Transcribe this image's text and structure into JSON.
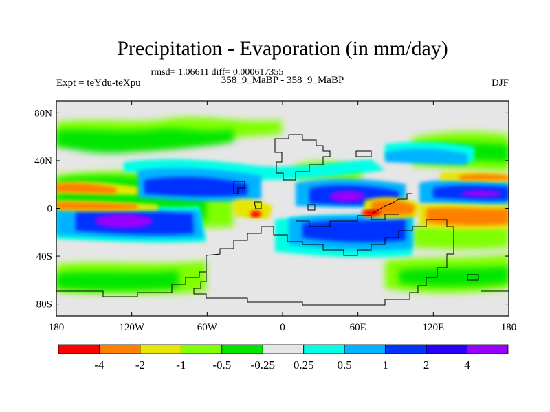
{
  "chart_data": {
    "type": "contour-map",
    "title": "Precipitation - Evaporation (in mm/day)",
    "stats_line": "rmsd= 1.06611 diff= 0.000617355",
    "left_label": "Expt = teYdu-teXpu",
    "center_label": "358_9_MaBP - 358_9_MaBP",
    "right_label": "DJF",
    "x_axis": {
      "range": [
        -180,
        180
      ],
      "ticks": [
        -180,
        -120,
        -60,
        0,
        60,
        120,
        180
      ],
      "tick_labels": [
        "180",
        "120W",
        "60W",
        "0",
        "60E",
        "120E",
        "180"
      ]
    },
    "y_axis": {
      "range": [
        -90,
        90
      ],
      "ticks": [
        80,
        40,
        0,
        -40,
        -80
      ],
      "tick_labels": [
        "80N",
        "40N",
        "0",
        "40S",
        "80S"
      ]
    },
    "colorbar": {
      "levels": [
        "-4",
        "-2",
        "-1",
        "-0.5",
        "-0.25",
        "0.25",
        "0.5",
        "1",
        "2",
        "4"
      ],
      "colors": [
        "#ff0000",
        "#ff8000",
        "#e6e600",
        "#80ff00",
        "#00e600",
        "#e6e6e6",
        "#00ffe6",
        "#00b3ff",
        "#0033ff",
        "#2600ff",
        "#9900ff"
      ]
    }
  }
}
